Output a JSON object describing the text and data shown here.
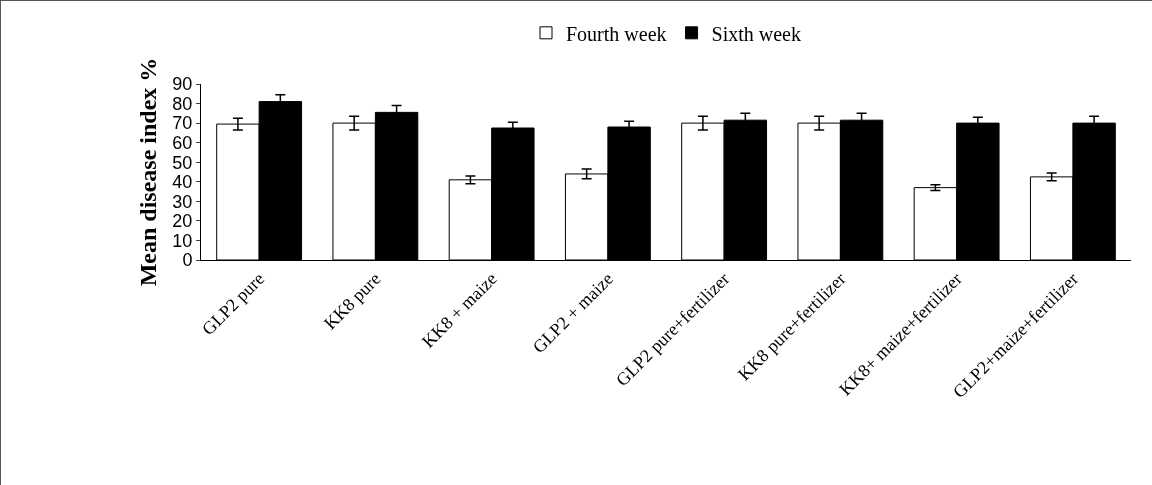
{
  "chart_data": {
    "type": "bar",
    "ylabel": "Mean disease index %",
    "categories": [
      "GLP2 pure",
      "KK8 pure",
      "KK8 + maize",
      "GLP2 + maize",
      "GLP2 pure+fertilizer",
      "KK8 pure+fertilizer",
      "KK8+ maize+fertilizer",
      "GLP2+maize+fertilizer"
    ],
    "series": [
      {
        "name": "Fourth week",
        "color": "#ffffff",
        "values": [
          69.5,
          70,
          41,
          44,
          70,
          70,
          37,
          42.5
        ],
        "errors": [
          3,
          3.5,
          2,
          2.5,
          3.5,
          3.5,
          1.5,
          2
        ]
      },
      {
        "name": "Sixth week",
        "color": "#000000",
        "values": [
          81,
          75.5,
          67.5,
          68,
          71.5,
          71.5,
          70,
          70
        ],
        "errors": [
          3.5,
          3.5,
          3,
          3,
          3.5,
          3.5,
          3,
          3.5
        ]
      }
    ],
    "ylim": [
      0,
      90
    ],
    "yticks": [
      0,
      10,
      20,
      30,
      40,
      50,
      60,
      70,
      80,
      90
    ],
    "grid": false,
    "legend": "top"
  }
}
